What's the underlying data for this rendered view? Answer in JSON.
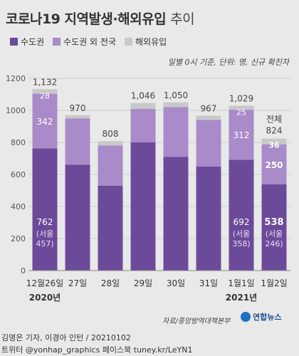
{
  "title": {
    "main": "코로나19 지역발생·해외유입",
    "sub": "추이"
  },
  "legend": [
    {
      "label": "수도권",
      "color": "#6c4a9a"
    },
    {
      "label": "수도권 외 전국",
      "color": "#a88bc8"
    },
    {
      "label": "해외유입",
      "color": "#c9c9c9"
    }
  ],
  "note": "일별 0시 기준, 단위: 명, 신규 확진자",
  "source": "자료/중앙방역대책본부",
  "brand": "연합뉴스",
  "credit_line1": "김영은 기자, 이경아 인턴 / 20210102",
  "credit_line2": "트위터 @yonhap_graphics  페이스북 tuney.kr/LeYN1",
  "chart_data": {
    "type": "bar",
    "stacked": true,
    "categories": [
      "12월26일",
      "27일",
      "28일",
      "29일",
      "30일",
      "31일",
      "1월1일",
      "1월2일"
    ],
    "year_labels": [
      {
        "text": "2020년",
        "category_index": 0
      },
      {
        "text": "2021년",
        "category_index": 6
      }
    ],
    "series": [
      {
        "name": "수도권",
        "color": "#6c4a9a",
        "values": [
          762,
          660,
          530,
          800,
          710,
          650,
          692,
          538
        ]
      },
      {
        "name": "수도권 외 전국",
        "color": "#a88bc8",
        "values": [
          342,
          290,
          250,
          210,
          310,
          290,
          312,
          250
        ]
      },
      {
        "name": "해외유입",
        "color": "#c9c9c9",
        "values": [
          28,
          20,
          28,
          36,
          30,
          27,
          25,
          36
        ]
      }
    ],
    "totals": [
      1132,
      970,
      808,
      1046,
      1050,
      967,
      1029,
      824
    ],
    "total_prefix_last": "전체",
    "labeled_values": {
      "0": {
        "s0": "762",
        "s0_sub": "(서울 457)",
        "s1": "342",
        "s2": "28"
      },
      "6": {
        "s0": "692",
        "s0_sub": "(서울 358)",
        "s1": "312",
        "s2": "25"
      },
      "7": {
        "s0": "538",
        "s0_sub": "(서울 246)",
        "s1": "250",
        "s2": "36"
      }
    },
    "highlight_index": 7,
    "yticks": [
      0,
      200,
      400,
      600,
      800,
      1000,
      1200
    ],
    "ylim": [
      0,
      1200
    ],
    "grid": true
  }
}
